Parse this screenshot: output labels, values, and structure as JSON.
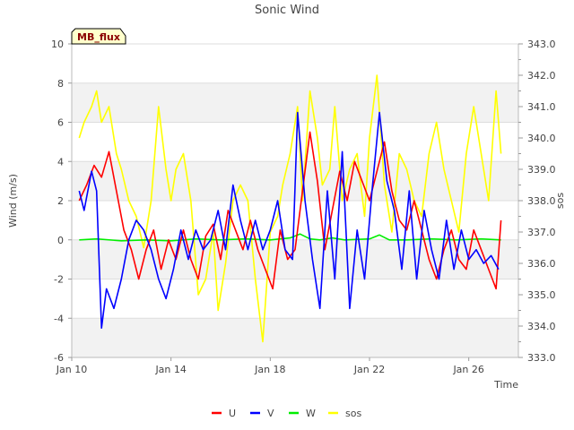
{
  "chart_data": {
    "type": "line",
    "title": "Sonic Wind",
    "badge": "MB_flux",
    "xlabel": "Time",
    "ylabel_left": "Wind (m/s)",
    "ylabel_right": "sos",
    "x_ticks": [
      "Jan 10",
      "Jan 14",
      "Jan 18",
      "Jan 22",
      "Jan 26"
    ],
    "x_tick_days": [
      10,
      14,
      18,
      22,
      26
    ],
    "xlim_days": [
      10,
      28
    ],
    "left_axis": {
      "ylim": [
        -6,
        10
      ],
      "ticks": [
        -6,
        -4,
        -2,
        0,
        2,
        4,
        6,
        8,
        10
      ]
    },
    "right_axis": {
      "ylim": [
        333.0,
        343.0
      ],
      "ticks": [
        "333.0",
        "334.0",
        "335.0",
        "336.0",
        "337.0",
        "338.0",
        "339.0",
        "340.0",
        "341.0",
        "342.0",
        "343.0"
      ]
    },
    "grid": true,
    "legend_position": "bottom-center",
    "series": [
      {
        "name": "U",
        "axis": "left",
        "color": "#ff0000",
        "x": [
          10.3,
          10.6,
          10.9,
          11.2,
          11.5,
          11.8,
          12.1,
          12.4,
          12.7,
          13.0,
          13.3,
          13.6,
          13.9,
          14.2,
          14.5,
          14.8,
          15.1,
          15.4,
          15.7,
          16.0,
          16.3,
          16.6,
          16.9,
          17.2,
          17.5,
          17.8,
          18.1,
          18.4,
          18.7,
          19.0,
          19.3,
          19.6,
          19.9,
          20.2,
          20.5,
          20.8,
          21.1,
          21.4,
          21.7,
          22.0,
          22.3,
          22.6,
          22.9,
          23.2,
          23.5,
          23.8,
          24.1,
          24.4,
          24.7,
          25.0,
          25.3,
          25.6,
          25.9,
          26.2,
          26.5,
          26.8,
          27.1,
          27.3
        ],
        "y": [
          2.0,
          2.8,
          3.8,
          3.2,
          4.5,
          2.5,
          0.5,
          -0.5,
          -2.0,
          -0.5,
          0.5,
          -1.5,
          0.0,
          -1.0,
          0.5,
          -1.0,
          -2.0,
          0.2,
          0.8,
          -1.0,
          1.5,
          0.5,
          -0.5,
          1.0,
          -0.5,
          -1.5,
          -2.5,
          0.5,
          -1.0,
          -0.5,
          2.5,
          5.5,
          3.0,
          -0.5,
          1.5,
          3.5,
          2.0,
          4.0,
          3.0,
          2.0,
          3.5,
          5.0,
          2.5,
          1.0,
          0.5,
          2.0,
          0.5,
          -1.0,
          -2.0,
          -0.5,
          0.5,
          -1.0,
          -1.5,
          0.5,
          -0.5,
          -1.5,
          -2.5,
          1.0
        ]
      },
      {
        "name": "V",
        "axis": "left",
        "color": "#0000ff",
        "x": [
          10.3,
          10.5,
          10.8,
          11.0,
          11.2,
          11.4,
          11.7,
          12.0,
          12.3,
          12.6,
          12.9,
          13.2,
          13.5,
          13.8,
          14.1,
          14.4,
          14.7,
          15.0,
          15.3,
          15.6,
          15.9,
          16.2,
          16.5,
          16.8,
          17.1,
          17.4,
          17.7,
          18.0,
          18.3,
          18.6,
          18.9,
          19.1,
          19.4,
          19.7,
          20.0,
          20.3,
          20.6,
          20.9,
          21.2,
          21.5,
          21.8,
          22.1,
          22.4,
          22.7,
          23.0,
          23.3,
          23.6,
          23.9,
          24.2,
          24.5,
          24.8,
          25.1,
          25.4,
          25.7,
          26.0,
          26.3,
          26.6,
          26.9,
          27.2
        ],
        "y": [
          2.5,
          1.5,
          3.5,
          2.5,
          -4.5,
          -2.5,
          -3.5,
          -2.0,
          0.0,
          1.0,
          0.5,
          -0.5,
          -2.0,
          -3.0,
          -1.5,
          0.5,
          -1.0,
          0.5,
          -0.5,
          0.0,
          1.5,
          -0.5,
          2.8,
          1.0,
          -0.5,
          1.0,
          -0.5,
          0.5,
          2.0,
          -0.5,
          -1.0,
          6.5,
          2.0,
          -1.0,
          -3.5,
          2.5,
          -2.0,
          4.5,
          -3.5,
          0.5,
          -2.0,
          2.5,
          6.5,
          3.0,
          1.5,
          -1.5,
          2.5,
          -2.0,
          1.5,
          -0.5,
          -2.0,
          1.0,
          -1.5,
          0.5,
          -1.0,
          -0.5,
          -1.2,
          -0.8,
          -1.5
        ]
      },
      {
        "name": "W",
        "axis": "left",
        "color": "#00ee00",
        "x": [
          10.3,
          11.0,
          12.0,
          13.0,
          14.0,
          15.0,
          16.0,
          17.0,
          18.0,
          18.8,
          19.2,
          19.6,
          20.0,
          20.5,
          21.0,
          22.0,
          22.4,
          22.8,
          23.5,
          24.5,
          25.5,
          26.5,
          27.3
        ],
        "y": [
          0.0,
          0.05,
          -0.05,
          0.0,
          -0.05,
          0.05,
          0.0,
          0.05,
          0.0,
          0.1,
          0.3,
          0.05,
          0.0,
          0.1,
          0.0,
          0.05,
          0.25,
          0.0,
          0.0,
          0.05,
          0.0,
          0.05,
          0.0
        ]
      },
      {
        "name": "sos",
        "axis": "right",
        "color": "#ffff00",
        "x": [
          10.3,
          10.5,
          10.8,
          11.0,
          11.2,
          11.5,
          11.8,
          12.0,
          12.3,
          12.6,
          12.9,
          13.2,
          13.5,
          13.8,
          14.0,
          14.2,
          14.5,
          14.8,
          15.1,
          15.4,
          15.7,
          15.9,
          16.2,
          16.5,
          16.8,
          17.1,
          17.4,
          17.7,
          18.0,
          18.3,
          18.5,
          18.8,
          19.1,
          19.3,
          19.6,
          19.9,
          20.1,
          20.4,
          20.6,
          20.9,
          21.2,
          21.5,
          21.8,
          22.0,
          22.3,
          22.6,
          22.9,
          23.2,
          23.5,
          23.8,
          24.1,
          24.4,
          24.7,
          25.0,
          25.3,
          25.6,
          25.9,
          26.2,
          26.5,
          26.8,
          27.1,
          27.3
        ],
        "y": [
          340.0,
          340.5,
          341.0,
          341.5,
          340.5,
          341.0,
          339.5,
          339.0,
          338.0,
          337.5,
          336.5,
          338.0,
          341.0,
          339.0,
          338.0,
          339.0,
          339.5,
          338.0,
          335.0,
          335.5,
          337.0,
          334.5,
          336.0,
          338.0,
          338.5,
          338.0,
          335.5,
          333.5,
          337.0,
          337.5,
          338.5,
          339.5,
          341.0,
          338.0,
          341.5,
          340.0,
          338.5,
          339.0,
          341.0,
          338.0,
          339.0,
          339.5,
          337.5,
          340.0,
          342.0,
          338.5,
          337.0,
          339.5,
          339.0,
          338.0,
          337.5,
          339.5,
          340.5,
          339.0,
          338.0,
          337.0,
          339.5,
          341.0,
          339.5,
          338.0,
          341.5,
          339.5
        ]
      }
    ]
  }
}
